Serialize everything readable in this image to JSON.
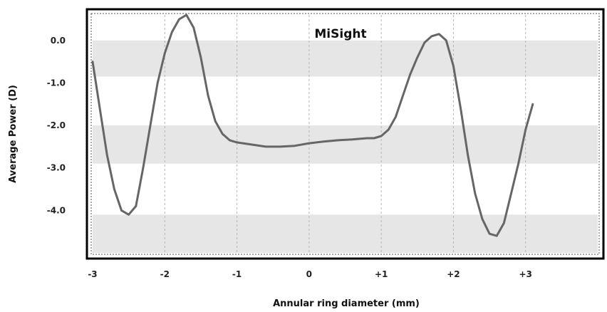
{
  "chart_data": {
    "type": "line",
    "title": "MiSight",
    "xlabel": "Annular ring diameter (mm)",
    "ylabel": "Average Power (D)",
    "xlim": [
      -3,
      4
    ],
    "ylim": [
      -5,
      0.6
    ],
    "x_ticks": [
      {
        "value": -3,
        "label": "-3"
      },
      {
        "value": -2,
        "label": "-2"
      },
      {
        "value": -1,
        "label": "-1"
      },
      {
        "value": 0,
        "label": "0"
      },
      {
        "value": 1,
        "label": "+1"
      },
      {
        "value": 2,
        "label": "+2"
      },
      {
        "value": 3,
        "label": "+3"
      }
    ],
    "y_ticks": [
      {
        "value": 0,
        "label": "0.0"
      },
      {
        "value": -1,
        "label": "-1.0"
      },
      {
        "value": -2,
        "label": "-2.0"
      },
      {
        "value": -3,
        "label": "-3.0"
      },
      {
        "value": -4,
        "label": "-4.0"
      }
    ],
    "bands": [
      [
        -0.85,
        0.0
      ],
      [
        -2.9,
        -2.0
      ],
      [
        -5.0,
        -4.1
      ]
    ],
    "grid": true,
    "line_color": "#666666",
    "band_color": "#e6e6e6",
    "series": [
      {
        "x": [
          -3.0,
          -2.9,
          -2.8,
          -2.7,
          -2.6,
          -2.5,
          -2.4,
          -2.3,
          -2.2,
          -2.1,
          -2.0,
          -1.9,
          -1.8,
          -1.7,
          -1.6,
          -1.5,
          -1.4,
          -1.3,
          -1.2,
          -1.1,
          -1.0,
          -0.8,
          -0.6,
          -0.4,
          -0.2,
          0.0,
          0.2,
          0.4,
          0.6,
          0.8,
          0.9,
          1.0,
          1.1,
          1.2,
          1.3,
          1.4,
          1.5,
          1.6,
          1.7,
          1.8,
          1.9,
          2.0,
          2.1,
          2.2,
          2.3,
          2.4,
          2.5,
          2.6,
          2.7,
          2.8,
          2.9,
          3.0,
          3.1
        ],
        "y": [
          -0.5,
          -1.6,
          -2.7,
          -3.5,
          -4.0,
          -4.1,
          -3.9,
          -3.0,
          -2.0,
          -1.0,
          -0.3,
          0.2,
          0.5,
          0.6,
          0.3,
          -0.4,
          -1.3,
          -1.9,
          -2.2,
          -2.35,
          -2.4,
          -2.45,
          -2.5,
          -2.5,
          -2.48,
          -2.42,
          -2.38,
          -2.35,
          -2.33,
          -2.3,
          -2.3,
          -2.25,
          -2.1,
          -1.8,
          -1.3,
          -0.8,
          -0.4,
          -0.05,
          0.1,
          0.15,
          0.0,
          -0.6,
          -1.6,
          -2.7,
          -3.6,
          -4.2,
          -4.55,
          -4.6,
          -4.3,
          -3.6,
          -2.9,
          -2.1,
          -1.5
        ]
      }
    ]
  }
}
